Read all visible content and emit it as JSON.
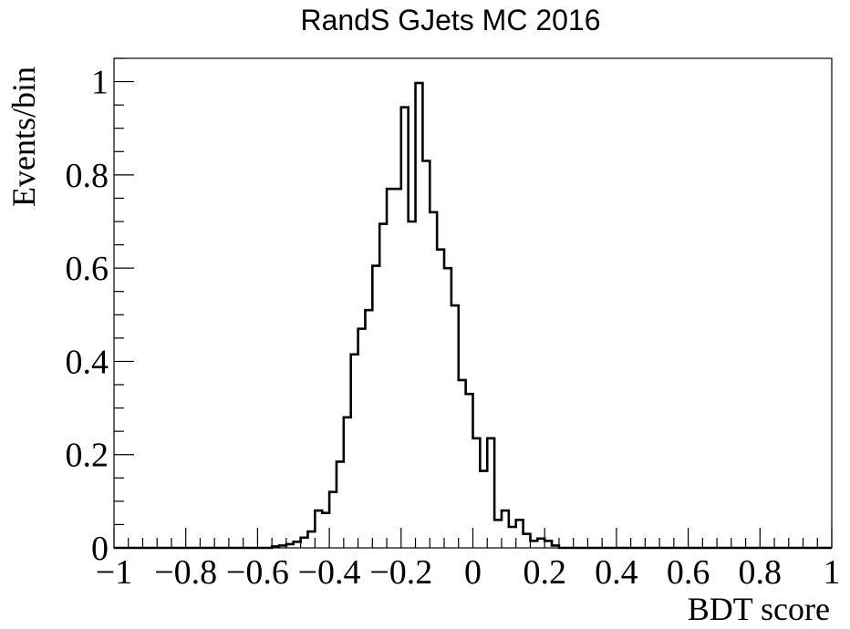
{
  "chart_data": {
    "type": "histogram",
    "title": "RandS GJets MC 2016",
    "xlabel": "BDT score",
    "ylabel": "Events/bin",
    "xlim": [
      -1,
      1
    ],
    "ylim": [
      0,
      1.05
    ],
    "bins": 100,
    "x_ticks": [
      -1,
      -0.8,
      -0.6,
      -0.4,
      -0.2,
      0,
      0.2,
      0.4,
      0.6,
      0.8,
      1
    ],
    "x_tick_labels": [
      "−1",
      "−0.8",
      "−0.6",
      "−0.4",
      "−0.2",
      "0",
      "0.2",
      "0.4",
      "0.6",
      "0.8",
      "1"
    ],
    "y_ticks": [
      0,
      0.2,
      0.4,
      0.6,
      0.8,
      1
    ],
    "y_tick_labels": [
      "0",
      "0.2",
      "0.4",
      "0.6",
      "0.8",
      "1"
    ],
    "grid": false,
    "values": [
      0,
      0,
      0,
      0,
      0,
      0,
      0,
      0,
      0,
      0,
      0,
      0,
      0,
      0,
      0,
      0,
      0,
      0,
      0,
      0,
      0,
      0,
      0.003,
      0.005,
      0.008,
      0.013,
      0.022,
      0.035,
      0.08,
      0.075,
      0.12,
      0.185,
      0.28,
      0.415,
      0.47,
      0.51,
      0.605,
      0.695,
      0.77,
      0.77,
      0.945,
      0.7,
      0.997,
      0.83,
      0.72,
      0.64,
      0.6,
      0.52,
      0.36,
      0.33,
      0.235,
      0.165,
      0.235,
      0.06,
      0.08,
      0.045,
      0.06,
      0.03,
      0.015,
      0.02,
      0.015,
      0.005,
      0,
      0,
      0,
      0,
      0,
      0,
      0,
      0,
      0,
      0,
      0,
      0,
      0,
      0,
      0,
      0,
      0,
      0,
      0,
      0,
      0,
      0,
      0,
      0,
      0,
      0,
      0,
      0,
      0,
      0,
      0,
      0,
      0,
      0,
      0,
      0,
      0,
      0
    ]
  }
}
